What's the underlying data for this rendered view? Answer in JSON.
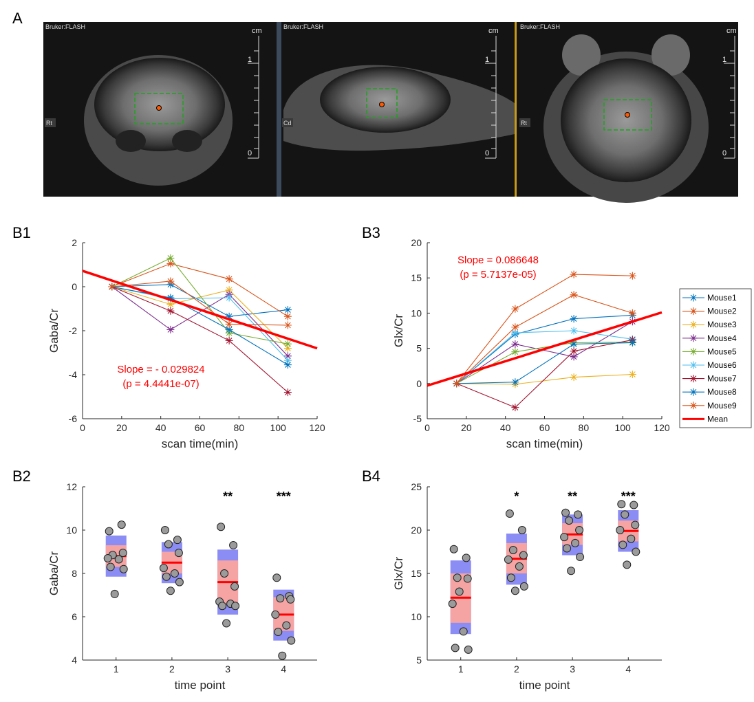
{
  "panels": {
    "a": "A",
    "b1": "B1",
    "b2": "B2",
    "b3": "B3",
    "b4": "B4"
  },
  "mri": {
    "views": [
      {
        "header": "Bruker:FLASH",
        "orientation": "Rt"
      },
      {
        "header": "Bruker:FLASH",
        "orientation": "Cd"
      },
      {
        "header": "Bruker:FLASH",
        "orientation": "Rt"
      }
    ],
    "scale_unit": "cm",
    "scale_top": "1",
    "scale_bottom": "0",
    "colors": {
      "background": "#141414",
      "voi_box": "#1fa31f",
      "voi_center": "#ff5a00"
    }
  },
  "legend": {
    "entries": [
      "Mouse1",
      "Mouse2",
      "Mouse3",
      "Mouse4",
      "Mouse5",
      "Mouse6",
      "Mouse7",
      "Mouse8",
      "Mouse9",
      "Mean"
    ]
  },
  "annotations": {
    "b1_slope": "Slope = - 0.029824",
    "b1_p": "(p = 4.4441e-07)",
    "b3_slope": "Slope = 0.086648",
    "b3_p": "(p = 5.7137e-05)"
  },
  "chart_data": [
    {
      "id": "B1",
      "type": "line",
      "xlabel": "scan time(min)",
      "ylabel": "Gaba/Cr",
      "xlim": [
        0,
        120
      ],
      "ylim": [
        -6,
        2
      ],
      "xticks": [
        0,
        20,
        40,
        60,
        80,
        100,
        120
      ],
      "yticks": [
        -6,
        -4,
        -2,
        0,
        2
      ],
      "x": [
        15,
        45,
        75,
        105
      ],
      "series": [
        {
          "name": "Mouse1",
          "color": "#0072bd",
          "values": [
            0,
            0.1,
            -1.35,
            -1.05
          ]
        },
        {
          "name": "Mouse2",
          "color": "#d95319",
          "values": [
            0,
            1.05,
            0.35,
            -1.35
          ]
        },
        {
          "name": "Mouse3",
          "color": "#edb120",
          "values": [
            0,
            -0.8,
            -0.15,
            -2.8
          ]
        },
        {
          "name": "Mouse4",
          "color": "#7e2f8e",
          "values": [
            0,
            -1.95,
            -0.35,
            -3.15
          ]
        },
        {
          "name": "Mouse5",
          "color": "#77ac30",
          "values": [
            0,
            1.3,
            -2.1,
            -2.6
          ]
        },
        {
          "name": "Mouse6",
          "color": "#4dbeee",
          "values": [
            0,
            -0.55,
            -0.5,
            -3.35
          ]
        },
        {
          "name": "Mouse7",
          "color": "#a2142f",
          "values": [
            0,
            -1.1,
            -2.45,
            -4.8
          ]
        },
        {
          "name": "Mouse8",
          "color": "#0072bd",
          "values": [
            0,
            -0.5,
            -1.95,
            -3.55
          ]
        },
        {
          "name": "Mouse9",
          "color": "#d95319",
          "values": [
            0,
            0.25,
            -1.7,
            -1.75
          ]
        }
      ],
      "mean_line": {
        "name": "Mean",
        "color": "#ff0000",
        "x": [
          0,
          120
        ],
        "y": [
          0.72,
          -2.8
        ]
      }
    },
    {
      "id": "B3",
      "type": "line",
      "xlabel": "scan time(min)",
      "ylabel": "Glx/Cr",
      "xlim": [
        0,
        120
      ],
      "ylim": [
        -5,
        20
      ],
      "xticks": [
        0,
        20,
        40,
        60,
        80,
        100,
        120
      ],
      "yticks": [
        -5,
        0,
        5,
        10,
        15,
        20
      ],
      "x": [
        15,
        45,
        75,
        105
      ],
      "series": [
        {
          "name": "Mouse1",
          "color": "#0072bd",
          "values": [
            0,
            7.0,
            9.2,
            9.7
          ]
        },
        {
          "name": "Mouse2",
          "color": "#d95319",
          "values": [
            0,
            10.6,
            15.5,
            15.3
          ]
        },
        {
          "name": "Mouse3",
          "color": "#edb120",
          "values": [
            0,
            -0.1,
            0.9,
            1.3
          ]
        },
        {
          "name": "Mouse4",
          "color": "#7e2f8e",
          "values": [
            0,
            5.6,
            3.8,
            8.8
          ]
        },
        {
          "name": "Mouse5",
          "color": "#77ac30",
          "values": [
            0,
            4.5,
            5.8,
            5.9
          ]
        },
        {
          "name": "Mouse6",
          "color": "#4dbeee",
          "values": [
            0,
            7.2,
            7.5,
            6.3
          ]
        },
        {
          "name": "Mouse7",
          "color": "#a2142f",
          "values": [
            0,
            -3.4,
            4.6,
            6.2
          ]
        },
        {
          "name": "Mouse8",
          "color": "#0072bd",
          "values": [
            0,
            0.2,
            5.6,
            5.8
          ]
        },
        {
          "name": "Mouse9",
          "color": "#d95319",
          "values": [
            0,
            8.0,
            12.6,
            10.0
          ]
        }
      ],
      "mean_line": {
        "name": "Mean",
        "color": "#ff0000",
        "x": [
          0,
          120
        ],
        "y": [
          -0.3,
          10.1
        ]
      }
    },
    {
      "id": "B2",
      "type": "scatter",
      "xlabel": "time point",
      "ylabel": "Gaba/Cr",
      "xlim": [
        0.4,
        4.6
      ],
      "ylim": [
        4,
        12
      ],
      "xticks": [
        1,
        2,
        3,
        4
      ],
      "yticks": [
        4,
        6,
        8,
        10,
        12
      ],
      "groups": [
        {
          "x": 1,
          "mean": 8.8,
          "ci": [
            8.3,
            9.3
          ],
          "sd": [
            7.85,
            9.75
          ],
          "significance": "",
          "points": [
            9.95,
            10.25,
            8.85,
            8.95,
            8.7,
            8.65,
            8.3,
            8.2,
            7.05
          ]
        },
        {
          "x": 2,
          "mean": 8.5,
          "ci": [
            8.0,
            9.0
          ],
          "sd": [
            7.55,
            9.45
          ],
          "significance": "",
          "points": [
            10.0,
            9.55,
            9.35,
            8.95,
            8.25,
            8.0,
            7.85,
            7.6,
            7.2
          ]
        },
        {
          "x": 3,
          "mean": 7.6,
          "ci": [
            6.6,
            8.6
          ],
          "sd": [
            6.1,
            9.1
          ],
          "significance": "**",
          "points": [
            10.15,
            9.3,
            8.0,
            7.4,
            6.7,
            6.6,
            6.5,
            6.5,
            5.7
          ]
        },
        {
          "x": 4,
          "mean": 6.1,
          "ci": [
            5.35,
            6.9
          ],
          "sd": [
            4.9,
            7.25
          ],
          "significance": "***",
          "points": [
            7.8,
            6.95,
            6.85,
            6.8,
            6.1,
            5.6,
            5.3,
            4.9,
            4.2
          ]
        }
      ]
    },
    {
      "id": "B4",
      "type": "scatter",
      "xlabel": "time point",
      "ylabel": "Glx/Cr",
      "xlim": [
        0.4,
        4.6
      ],
      "ylim": [
        5,
        25
      ],
      "xticks": [
        1,
        2,
        3,
        4
      ],
      "yticks": [
        5,
        10,
        15,
        20,
        25
      ],
      "groups": [
        {
          "x": 1,
          "mean": 12.2,
          "ci": [
            9.3,
            15.0
          ],
          "sd": [
            8.0,
            16.5
          ],
          "significance": "",
          "points": [
            17.8,
            16.8,
            14.5,
            14.4,
            11.5,
            8.3,
            6.4,
            6.2,
            12.9
          ]
        },
        {
          "x": 2,
          "mean": 16.7,
          "ci": [
            15.0,
            18.5
          ],
          "sd": [
            13.7,
            19.6
          ],
          "significance": "*",
          "points": [
            21.9,
            20.0,
            17.7,
            17.1,
            16.6,
            15.8,
            14.5,
            13.5,
            13.0
          ]
        },
        {
          "x": 3,
          "mean": 19.5,
          "ci": [
            18.3,
            20.8
          ],
          "sd": [
            17.1,
            21.8
          ],
          "significance": "**",
          "points": [
            22.0,
            21.8,
            21.1,
            20.0,
            19.2,
            18.5,
            17.9,
            16.9,
            15.3
          ]
        },
        {
          "x": 4,
          "mean": 19.9,
          "ci": [
            18.7,
            21.1
          ],
          "sd": [
            17.5,
            22.3
          ],
          "significance": "***",
          "points": [
            23.0,
            22.9,
            21.8,
            20.6,
            20.0,
            19.0,
            18.3,
            17.5,
            16.0
          ]
        }
      ]
    }
  ]
}
